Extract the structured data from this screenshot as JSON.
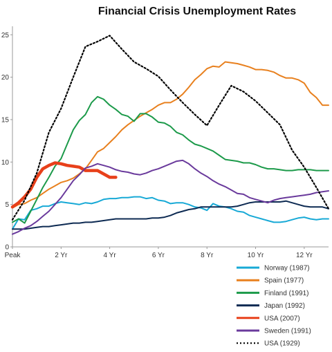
{
  "chart_data": {
    "type": "line",
    "title": "Financial Crisis Unemployment Rates",
    "xlabel": "",
    "ylabel": "",
    "xlim": [
      0,
      13
    ],
    "ylim": [
      0,
      26
    ],
    "grid": false,
    "legend_position": "bottom-right",
    "x_ticks": [
      {
        "label": "Peak",
        "value": 0
      },
      {
        "label": "2 Yr",
        "value": 2
      },
      {
        "label": "4 Yr",
        "value": 4
      },
      {
        "label": "6 Yr",
        "value": 6
      },
      {
        "label": "8 Yr",
        "value": 8
      },
      {
        "label": "10 Yr",
        "value": 10
      },
      {
        "label": "12 Yr",
        "value": 12
      }
    ],
    "y_ticks": [
      0,
      5,
      10,
      15,
      20,
      25
    ],
    "series": [
      {
        "name": "Norway (1987)",
        "color": "#17a9d6",
        "style": "solid-thin",
        "x": [
          0,
          0.25,
          0.5,
          0.75,
          1,
          1.25,
          1.5,
          1.75,
          2,
          2.25,
          2.5,
          2.75,
          3,
          3.25,
          3.5,
          3.75,
          4,
          4.25,
          4.5,
          4.75,
          5,
          5.25,
          5.5,
          5.75,
          6,
          6.25,
          6.5,
          6.75,
          7,
          7.25,
          7.5,
          7.75,
          8,
          8.25,
          8.5,
          8.75,
          9,
          9.25,
          9.5,
          9.75,
          10,
          10.25,
          10.5,
          10.75,
          11,
          11.25,
          11.5,
          11.75,
          12,
          12.25,
          12.5,
          12.75,
          13
        ],
        "values": [
          2.1,
          3.3,
          3.2,
          4.3,
          4.5,
          4.8,
          4.8,
          5.1,
          5.3,
          5.2,
          5.1,
          5.0,
          5.2,
          5.1,
          5.3,
          5.6,
          5.7,
          5.7,
          5.8,
          5.8,
          5.9,
          5.9,
          5.7,
          5.8,
          5.5,
          5.4,
          5.1,
          5.2,
          5.2,
          5.0,
          4.7,
          4.6,
          4.3,
          5.1,
          4.8,
          4.7,
          4.5,
          4.2,
          4.1,
          3.7,
          3.5,
          3.3,
          3.1,
          2.9,
          2.9,
          3.0,
          3.2,
          3.4,
          3.5,
          3.3,
          3.2,
          3.3,
          3.3
        ]
      },
      {
        "name": "Spain (1977)",
        "color": "#e8801e",
        "style": "solid-thin",
        "x": [
          0,
          0.25,
          0.5,
          0.75,
          1,
          1.25,
          1.5,
          1.75,
          2,
          2.25,
          2.5,
          2.75,
          3,
          3.25,
          3.5,
          3.75,
          4,
          4.25,
          4.5,
          4.75,
          5,
          5.25,
          5.5,
          5.75,
          6,
          6.25,
          6.5,
          6.75,
          7,
          7.25,
          7.5,
          7.75,
          8,
          8.25,
          8.5,
          8.75,
          9,
          9.25,
          9.5,
          9.75,
          10,
          10.25,
          10.5,
          10.75,
          11,
          11.25,
          11.5,
          11.75,
          12,
          12.25,
          12.5,
          12.75,
          13
        ],
        "values": [
          4.6,
          5.0,
          5.1,
          5.5,
          5.8,
          6.3,
          6.8,
          7.2,
          7.6,
          7.8,
          8.1,
          8.6,
          9.2,
          10.2,
          11.2,
          11.6,
          12.3,
          13.0,
          13.8,
          14.4,
          14.9,
          15.4,
          15.8,
          16.2,
          16.7,
          17.0,
          17.0,
          17.4,
          18.0,
          18.8,
          19.7,
          20.3,
          21.0,
          21.3,
          21.2,
          21.8,
          21.7,
          21.6,
          21.4,
          21.2,
          20.9,
          20.9,
          20.8,
          20.6,
          20.2,
          19.9,
          19.9,
          19.7,
          19.3,
          18.2,
          17.6,
          16.7,
          16.7
        ]
      },
      {
        "name": "Finland (1991)",
        "color": "#1c9a4a",
        "style": "solid-thin",
        "x": [
          0,
          0.25,
          0.5,
          0.75,
          1,
          1.25,
          1.5,
          1.75,
          2,
          2.25,
          2.5,
          2.75,
          3,
          3.25,
          3.5,
          3.75,
          4,
          4.25,
          4.5,
          4.75,
          5,
          5.25,
          5.5,
          5.75,
          6,
          6.25,
          6.5,
          6.75,
          7,
          7.25,
          7.5,
          7.75,
          8,
          8.25,
          8.5,
          8.75,
          9,
          9.25,
          9.5,
          9.75,
          10,
          10.25,
          10.5,
          10.75,
          11,
          11.25,
          11.5,
          11.75,
          12,
          12.25,
          12.5,
          12.75,
          13
        ],
        "values": [
          2.9,
          3.3,
          2.8,
          4.2,
          5.6,
          7.0,
          8.2,
          9.5,
          10.4,
          12.1,
          13.8,
          14.9,
          15.6,
          17.0,
          17.7,
          17.4,
          16.7,
          16.2,
          15.6,
          15.4,
          14.8,
          15.7,
          15.7,
          15.3,
          14.7,
          14.6,
          14.2,
          13.5,
          13.2,
          12.6,
          12.1,
          11.9,
          11.6,
          11.3,
          10.8,
          10.3,
          10.2,
          10.1,
          9.9,
          9.9,
          9.7,
          9.4,
          9.2,
          9.2,
          9.1,
          9.0,
          9.0,
          9.1,
          9.1,
          9.1,
          9.0,
          9.0,
          9.0
        ]
      },
      {
        "name": "Japan (1992)",
        "color": "#0d2a52",
        "style": "solid-thin",
        "x": [
          0,
          0.25,
          0.5,
          0.75,
          1,
          1.25,
          1.5,
          1.75,
          2,
          2.25,
          2.5,
          2.75,
          3,
          3.25,
          3.5,
          3.75,
          4,
          4.25,
          4.5,
          4.75,
          5,
          5.25,
          5.5,
          5.75,
          6,
          6.25,
          6.5,
          6.75,
          7,
          7.25,
          7.5,
          7.75,
          8,
          8.25,
          8.5,
          8.75,
          9,
          9.25,
          9.5,
          9.75,
          10,
          10.25,
          10.5,
          10.75,
          11,
          11.25,
          11.5,
          11.75,
          12,
          12.25,
          12.5,
          12.75,
          13
        ],
        "values": [
          2.1,
          2.1,
          2.1,
          2.2,
          2.3,
          2.4,
          2.4,
          2.5,
          2.6,
          2.7,
          2.8,
          2.8,
          2.9,
          2.9,
          3.0,
          3.1,
          3.2,
          3.3,
          3.3,
          3.3,
          3.3,
          3.3,
          3.3,
          3.4,
          3.4,
          3.5,
          3.7,
          4.0,
          4.2,
          4.4,
          4.5,
          4.7,
          4.7,
          4.7,
          4.7,
          4.7,
          4.7,
          4.8,
          5.0,
          5.2,
          5.3,
          5.3,
          5.3,
          5.3,
          5.3,
          5.4,
          5.2,
          5.0,
          4.8,
          4.7,
          4.7,
          4.7,
          4.5
        ]
      },
      {
        "name": "USA (2007)",
        "color": "#e8401a",
        "style": "solid-thick",
        "x": [
          0,
          0.25,
          0.5,
          0.75,
          1,
          1.25,
          1.5,
          1.75,
          2,
          2.25,
          2.5,
          2.75,
          3,
          3.25,
          3.5,
          3.75,
          4,
          4.25
        ],
        "values": [
          4.7,
          5.2,
          5.9,
          6.8,
          8.2,
          9.2,
          9.6,
          9.9,
          9.8,
          9.6,
          9.5,
          9.4,
          9.0,
          9.0,
          9.0,
          8.6,
          8.2,
          8.2
        ]
      },
      {
        "name": "Sweden (1991)",
        "color": "#6a3a9c",
        "style": "solid-thin",
        "x": [
          0,
          0.25,
          0.5,
          0.75,
          1,
          1.25,
          1.5,
          1.75,
          2,
          2.25,
          2.5,
          2.75,
          3,
          3.25,
          3.5,
          3.75,
          4,
          4.25,
          4.5,
          4.75,
          5,
          5.25,
          5.5,
          5.75,
          6,
          6.25,
          6.5,
          6.75,
          7,
          7.25,
          7.5,
          7.75,
          8,
          8.25,
          8.5,
          8.75,
          9,
          9.25,
          9.5,
          9.75,
          10,
          10.25,
          10.5,
          10.75,
          11,
          11.25,
          11.5,
          11.75,
          12,
          12.25,
          12.5,
          12.75,
          13
        ],
        "values": [
          1.5,
          1.8,
          2.2,
          2.5,
          3.0,
          3.6,
          4.2,
          5.0,
          5.8,
          6.8,
          7.8,
          8.5,
          9.3,
          9.5,
          9.8,
          9.6,
          9.4,
          9.1,
          8.9,
          8.8,
          8.6,
          8.5,
          8.7,
          9.0,
          9.2,
          9.5,
          9.8,
          10.1,
          10.2,
          9.8,
          9.2,
          8.7,
          8.3,
          7.8,
          7.4,
          7.1,
          6.7,
          6.3,
          6.2,
          5.8,
          5.6,
          5.4,
          5.2,
          5.5,
          5.7,
          5.8,
          5.9,
          6.0,
          6.1,
          6.2,
          6.4,
          6.5,
          6.6
        ]
      },
      {
        "name": "USA (1929)",
        "color": "#000000",
        "style": "dotted",
        "x": [
          0,
          0.5,
          1,
          1.5,
          2,
          2.5,
          3,
          3.5,
          4,
          4.5,
          5,
          5.5,
          6,
          6.5,
          7,
          7.5,
          8,
          8.5,
          9,
          9.5,
          10,
          10.5,
          11,
          11.5,
          12,
          12.5,
          13
        ],
        "values": [
          3.2,
          5.5,
          8.7,
          13.5,
          16.3,
          20.0,
          23.6,
          24.2,
          24.9,
          23.3,
          21.8,
          21.0,
          20.1,
          18.5,
          17.0,
          15.6,
          14.3,
          16.7,
          19.0,
          18.3,
          17.2,
          15.8,
          14.4,
          11.4,
          9.4,
          7.0,
          4.5
        ]
      }
    ]
  }
}
